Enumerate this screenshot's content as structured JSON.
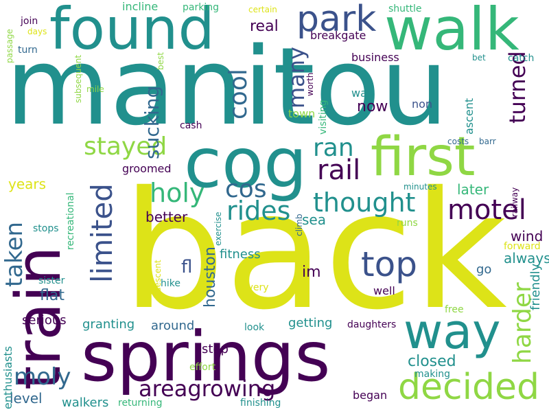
{
  "palette": {
    "dark_purple": "#440154",
    "indigo": "#3b528b",
    "blue": "#31688e",
    "teal": "#21908d",
    "green": "#35b779",
    "lime": "#8fd744",
    "yellow": "#dde318",
    "background": "#ffffff"
  },
  "words": [
    {
      "text": "manitou"
    },
    {
      "text": "back"
    },
    {
      "text": "springs"
    },
    {
      "text": "train"
    },
    {
      "text": "found"
    },
    {
      "text": "walk"
    },
    {
      "text": "cog"
    },
    {
      "text": "first"
    },
    {
      "text": "way"
    },
    {
      "text": "decided"
    },
    {
      "text": "park"
    },
    {
      "text": "top"
    },
    {
      "text": "limited"
    },
    {
      "text": "motel"
    },
    {
      "text": "rail"
    },
    {
      "text": "thought"
    },
    {
      "text": "rides"
    },
    {
      "text": "holy"
    },
    {
      "text": "stayed"
    },
    {
      "text": "ran"
    },
    {
      "text": "cos"
    },
    {
      "text": "moly"
    },
    {
      "text": "areagrowing"
    },
    {
      "text": "cool"
    },
    {
      "text": "many"
    },
    {
      "text": "harder"
    },
    {
      "text": "taken"
    },
    {
      "text": "sucking"
    },
    {
      "text": "turned"
    },
    {
      "text": "real"
    },
    {
      "text": "now"
    },
    {
      "text": "houston"
    },
    {
      "text": "closed"
    },
    {
      "text": "better"
    },
    {
      "text": "years"
    },
    {
      "text": "fl"
    },
    {
      "text": "flat"
    },
    {
      "text": "wind"
    },
    {
      "text": "always"
    },
    {
      "text": "im"
    },
    {
      "text": "sea"
    },
    {
      "text": "later"
    },
    {
      "text": "go"
    },
    {
      "text": "level"
    },
    {
      "text": "walkers"
    },
    {
      "text": "serious"
    },
    {
      "text": "granting"
    },
    {
      "text": "around"
    },
    {
      "text": "getting"
    },
    {
      "text": "step"
    },
    {
      "text": "fitness"
    },
    {
      "text": "began"
    },
    {
      "text": "returning"
    },
    {
      "text": "friendly"
    },
    {
      "text": "enthusiasts"
    },
    {
      "text": "well"
    },
    {
      "text": "business"
    },
    {
      "text": "breakgate"
    },
    {
      "text": "wait"
    },
    {
      "text": "incline"
    },
    {
      "text": "parking"
    },
    {
      "text": "certain"
    },
    {
      "text": "shuttle"
    },
    {
      "text": "join"
    },
    {
      "text": "days"
    },
    {
      "text": "passage"
    },
    {
      "text": "turn"
    },
    {
      "text": "subsequent"
    },
    {
      "text": "mile"
    },
    {
      "text": "best"
    },
    {
      "text": "groomed"
    },
    {
      "text": "cash"
    },
    {
      "text": "town"
    },
    {
      "text": "visiting"
    },
    {
      "text": "worth"
    },
    {
      "text": "non"
    },
    {
      "text": "ascent"
    },
    {
      "text": "bet"
    },
    {
      "text": "catch"
    },
    {
      "text": "costs"
    },
    {
      "text": "barr"
    },
    {
      "text": "minutes"
    },
    {
      "text": "railway"
    },
    {
      "text": "recreational"
    },
    {
      "text": "stops"
    },
    {
      "text": "exercise"
    },
    {
      "text": "climb"
    },
    {
      "text": "runs"
    },
    {
      "text": "forward"
    },
    {
      "text": "sister"
    },
    {
      "text": "hike"
    },
    {
      "text": "descent"
    },
    {
      "text": "every"
    },
    {
      "text": "look"
    },
    {
      "text": "daughters"
    },
    {
      "text": "free"
    },
    {
      "text": "effort"
    },
    {
      "text": "making"
    },
    {
      "text": "finishing"
    }
  ]
}
